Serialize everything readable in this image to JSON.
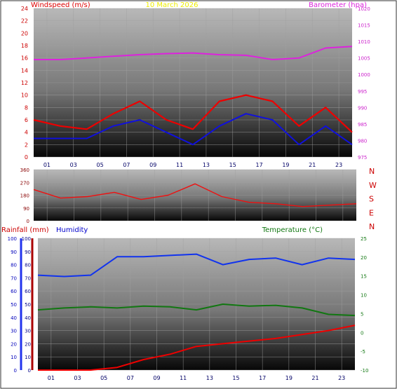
{
  "header": {
    "date": "10 March 2026",
    "wind_label": "Windspeed (m/s)",
    "baro_label": "Barometer (hpa)",
    "rain_label": "Rainfall (mm)",
    "humidity_label": "Humidity",
    "temperature_label": "Temperature (°C)"
  },
  "colors": {
    "wind_speed": "#ee0000",
    "wind_gust": "#1010dd",
    "barometer": "#dd22dd",
    "direction": "#ee1111",
    "rainfall": "#ee0000",
    "humidity": "#1133ee",
    "temperature": "#117711",
    "title": "#eeee00"
  },
  "x_ticks": [
    "01",
    "03",
    "05",
    "07",
    "09",
    "11",
    "13",
    "15",
    "17",
    "19",
    "21",
    "23"
  ],
  "chart_data": [
    {
      "type": "line",
      "title": "10 March 2026",
      "x": [
        0,
        2,
        4,
        6,
        8,
        10,
        12,
        14,
        16,
        18,
        20,
        22,
        24
      ],
      "y_left": {
        "label": "Windspeed (m/s)",
        "range": [
          0,
          24
        ],
        "ticks": [
          0,
          2,
          4,
          6,
          8,
          10,
          12,
          14,
          16,
          18,
          20,
          22,
          24
        ]
      },
      "y_right": {
        "label": "Barometer (hpa)",
        "range": [
          975,
          1020
        ],
        "ticks": [
          975,
          980,
          985,
          990,
          995,
          1000,
          1005,
          1010,
          1015,
          1020
        ]
      },
      "series": [
        {
          "axis": "left",
          "values": [
            6,
            5,
            4.5,
            7,
            9,
            6,
            4.5,
            9,
            10,
            9,
            5,
            8,
            4
          ]
        },
        {
          "axis": "left",
          "values": [
            3,
            3,
            3,
            5,
            6,
            4,
            2,
            5,
            7,
            6,
            2,
            5,
            2
          ]
        },
        {
          "axis": "right",
          "values": [
            1004.5,
            1004.5,
            1005,
            1005.5,
            1006,
            1006.3,
            1006.5,
            1006,
            1005.8,
            1004.5,
            1005,
            1008,
            1008.5
          ]
        }
      ]
    },
    {
      "type": "line",
      "x": [
        0,
        2,
        4,
        6,
        8,
        10,
        12,
        14,
        16,
        18,
        20,
        22,
        24
      ],
      "y_left": {
        "range": [
          0,
          360
        ],
        "ticks": [
          0,
          90,
          180,
          270,
          360
        ]
      },
      "y_right_labels": [
        "N",
        "W",
        "S",
        "E",
        "N"
      ],
      "series": [
        {
          "axis": "left",
          "values": [
            220,
            160,
            170,
            200,
            150,
            180,
            260,
            170,
            130,
            120,
            100,
            110,
            120
          ]
        }
      ]
    },
    {
      "type": "line",
      "x": [
        0,
        2,
        4,
        6,
        8,
        10,
        12,
        14,
        16,
        18,
        20,
        22,
        24
      ],
      "y_left": {
        "label": "Rainfall (mm)",
        "range": [
          0,
          100
        ],
        "ticks": [
          0,
          10,
          20,
          30,
          40,
          50,
          60,
          70,
          80,
          90,
          100
        ]
      },
      "y_humidity": {
        "label": "Humidity",
        "range": [
          0,
          100
        ],
        "ticks": [
          0,
          10,
          20,
          30,
          40,
          50,
          60,
          70,
          80,
          90,
          100
        ]
      },
      "y_right": {
        "label": "Temperature (°C)",
        "range": [
          -10,
          25
        ],
        "ticks": [
          -10,
          -5,
          0,
          5,
          10,
          15,
          20,
          25
        ]
      },
      "series": [
        {
          "axis": "rain",
          "values": [
            0,
            0,
            0,
            2,
            8,
            12,
            18,
            20,
            22,
            24,
            27,
            30,
            34
          ]
        },
        {
          "axis": "humidity",
          "values": [
            72,
            71,
            72,
            86,
            86,
            87,
            88,
            80,
            84,
            85,
            80,
            85,
            84
          ]
        },
        {
          "axis": "right",
          "values": [
            6,
            6.5,
            6.8,
            6.5,
            7,
            6.8,
            6,
            7.5,
            7,
            7.2,
            6.5,
            4.8,
            4.5
          ]
        }
      ]
    }
  ]
}
